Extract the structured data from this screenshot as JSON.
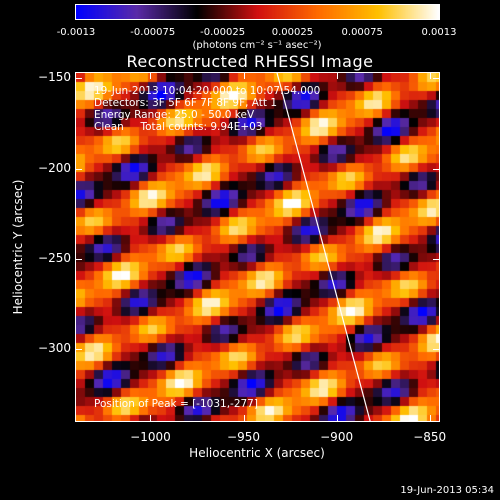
{
  "colorbar": {
    "ticks": [
      "-0.0013",
      "-0.00075",
      "-0.00025",
      "0.00025",
      "0.00075",
      "0.0013"
    ],
    "unit_label": "(photons cm⁻² s⁻¹ asec⁻²)",
    "vmin": -0.0013,
    "vmax": 0.0013
  },
  "plot": {
    "title": "Reconstructed RHESSI Image",
    "info_lines": [
      "19-Jun-2013 10:04:20.000 to 10:07:54.000",
      "Detectors: 3F 5F 6F 7F 8F 9F, Att 1",
      "Energy Range: 25.0 - 50.0 keV",
      "Clean     Total counts: 9.94E+03"
    ],
    "peak_label": "Position of Peak = [-1031,-277]",
    "footer_date": "19-Jun-2013 05:34",
    "colors": {
      "background": "#000000",
      "limb_line": "#ffffff"
    }
  },
  "chart_data": {
    "type": "heatmap",
    "title": "Reconstructed RHESSI Image",
    "xlabel": "Heliocentric X (arcsec)",
    "ylabel": "Heliocentric Y (arcsec)",
    "xlim": [
      -1040,
      -845
    ],
    "ylim": [
      -340,
      -147
    ],
    "xticks": [
      -1000,
      -950,
      -900,
      -850
    ],
    "xtick_labels": [
      "−1000",
      "−950",
      "−900",
      "−850"
    ],
    "yticks": [
      -150,
      -200,
      -250,
      -300
    ],
    "ytick_labels": [
      "−150",
      "−200",
      "−250",
      "−300"
    ],
    "colorscale": [
      "#0000ff",
      "#5a2aa8",
      "#000000",
      "#d01010",
      "#ff6a00",
      "#ffc000",
      "#ffffff"
    ],
    "peak": [
      -1031,
      -277
    ],
    "limb_line": [
      [
        -932,
        -147
      ],
      [
        -882,
        -340
      ]
    ],
    "grid": false
  }
}
